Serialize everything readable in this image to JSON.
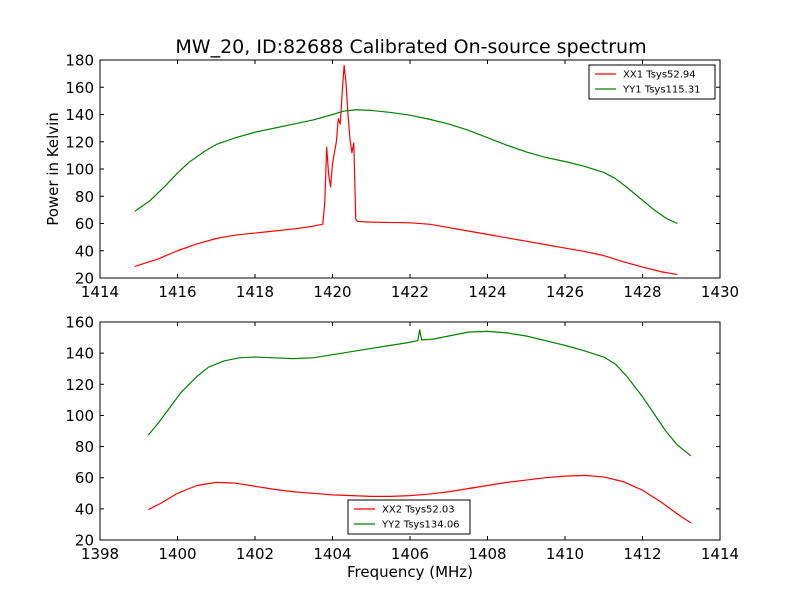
{
  "figure": {
    "title": "MW_20, ID:82688 Calibrated On-source spectrum",
    "ylabel": "Power in Kelvin",
    "xlabel": "Frequency (MHz)"
  },
  "chart_data": [
    {
      "type": "line",
      "xlim": [
        1414,
        1430
      ],
      "ylim": [
        20,
        180
      ],
      "xticks": [
        1414,
        1416,
        1418,
        1420,
        1422,
        1424,
        1426,
        1428,
        1430
      ],
      "yticks": [
        20,
        40,
        60,
        80,
        100,
        120,
        140,
        160,
        180
      ],
      "legend_loc": "upper right",
      "series": [
        {
          "name": "XX1 Tsys52.94",
          "color": "#ff0000",
          "points": [
            [
              1414.9,
              28.5
            ],
            [
              1415.5,
              34
            ],
            [
              1416.0,
              40
            ],
            [
              1416.5,
              45
            ],
            [
              1417.0,
              49
            ],
            [
              1417.5,
              51.5
            ],
            [
              1418.0,
              53
            ],
            [
              1418.5,
              54.5
            ],
            [
              1419.0,
              56
            ],
            [
              1419.5,
              58
            ],
            [
              1419.75,
              59.5
            ],
            [
              1419.8,
              75
            ],
            [
              1419.85,
              116
            ],
            [
              1419.9,
              96
            ],
            [
              1419.95,
              87
            ],
            [
              1420.0,
              104
            ],
            [
              1420.05,
              112
            ],
            [
              1420.1,
              120
            ],
            [
              1420.15,
              137
            ],
            [
              1420.2,
              133
            ],
            [
              1420.25,
              156
            ],
            [
              1420.3,
              176
            ],
            [
              1420.35,
              163
            ],
            [
              1420.4,
              140
            ],
            [
              1420.45,
              122
            ],
            [
              1420.5,
              112
            ],
            [
              1420.55,
              119
            ],
            [
              1420.6,
              63
            ],
            [
              1420.65,
              61.5
            ],
            [
              1421.0,
              61
            ],
            [
              1422.0,
              60.5
            ],
            [
              1422.5,
              59.5
            ],
            [
              1423.0,
              57
            ],
            [
              1423.5,
              54.5
            ],
            [
              1424.0,
              52
            ],
            [
              1424.5,
              49.5
            ],
            [
              1425.0,
              47
            ],
            [
              1425.5,
              44.5
            ],
            [
              1426.0,
              42
            ],
            [
              1426.5,
              39.5
            ],
            [
              1427.0,
              36.5
            ],
            [
              1427.5,
              32
            ],
            [
              1428.0,
              28
            ],
            [
              1428.5,
              24.5
            ],
            [
              1428.9,
              22.5
            ]
          ]
        },
        {
          "name": "YY1 Tsys115.31",
          "color": "#008000",
          "points": [
            [
              1414.9,
              69
            ],
            [
              1415.3,
              77
            ],
            [
              1415.7,
              88
            ],
            [
              1416.0,
              97
            ],
            [
              1416.3,
              105
            ],
            [
              1416.7,
              113
            ],
            [
              1417.0,
              118
            ],
            [
              1417.5,
              123
            ],
            [
              1418.0,
              127
            ],
            [
              1418.5,
              130
            ],
            [
              1419.0,
              133
            ],
            [
              1419.5,
              136
            ],
            [
              1420.0,
              140
            ],
            [
              1420.3,
              142.5
            ],
            [
              1420.6,
              143.5
            ],
            [
              1421.0,
              143
            ],
            [
              1421.5,
              141.5
            ],
            [
              1422.0,
              139.5
            ],
            [
              1422.5,
              136.5
            ],
            [
              1423.0,
              133
            ],
            [
              1423.5,
              128.5
            ],
            [
              1424.0,
              123
            ],
            [
              1424.5,
              117.5
            ],
            [
              1425.0,
              112.5
            ],
            [
              1425.5,
              108.5
            ],
            [
              1426.0,
              105.5
            ],
            [
              1426.5,
              102
            ],
            [
              1427.0,
              97.5
            ],
            [
              1427.3,
              93
            ],
            [
              1427.6,
              86.5
            ],
            [
              1428.0,
              77
            ],
            [
              1428.3,
              70
            ],
            [
              1428.6,
              64
            ],
            [
              1428.9,
              60
            ]
          ]
        }
      ]
    },
    {
      "type": "line",
      "xlim": [
        1398,
        1414
      ],
      "ylim": [
        20,
        160
      ],
      "xticks": [
        1398,
        1400,
        1402,
        1404,
        1406,
        1408,
        1410,
        1412,
        1414
      ],
      "yticks": [
        20,
        40,
        60,
        80,
        100,
        120,
        140,
        160
      ],
      "legend_loc": "lower center",
      "series": [
        {
          "name": "XX2 Tsys52.03",
          "color": "#ff0000",
          "points": [
            [
              1399.25,
              39.5
            ],
            [
              1399.6,
              44
            ],
            [
              1400.0,
              50
            ],
            [
              1400.5,
              55
            ],
            [
              1401.0,
              57
            ],
            [
              1401.5,
              56.5
            ],
            [
              1402.0,
              54.5
            ],
            [
              1402.5,
              52.5
            ],
            [
              1403.0,
              51
            ],
            [
              1403.5,
              50
            ],
            [
              1404.0,
              49
            ],
            [
              1404.5,
              48.5
            ],
            [
              1405.0,
              48
            ],
            [
              1405.5,
              48
            ],
            [
              1406.0,
              48.5
            ],
            [
              1406.5,
              49.5
            ],
            [
              1407.0,
              51
            ],
            [
              1407.5,
              53
            ],
            [
              1408.0,
              55
            ],
            [
              1408.5,
              57
            ],
            [
              1409.0,
              58.5
            ],
            [
              1409.5,
              60
            ],
            [
              1410.0,
              61
            ],
            [
              1410.5,
              61.5
            ],
            [
              1411.0,
              60.5
            ],
            [
              1411.5,
              57.5
            ],
            [
              1412.0,
              52
            ],
            [
              1412.5,
              44
            ],
            [
              1413.0,
              35
            ],
            [
              1413.25,
              31
            ]
          ]
        },
        {
          "name": "YY2 Tsys134.06",
          "color": "#008000",
          "points": [
            [
              1399.25,
              87.5
            ],
            [
              1399.5,
              95
            ],
            [
              1399.8,
              105
            ],
            [
              1400.1,
              115
            ],
            [
              1400.5,
              125
            ],
            [
              1400.8,
              131
            ],
            [
              1401.2,
              135
            ],
            [
              1401.6,
              137
            ],
            [
              1402.0,
              137.5
            ],
            [
              1402.5,
              137
            ],
            [
              1403.0,
              136.5
            ],
            [
              1403.5,
              137
            ],
            [
              1404.0,
              139
            ],
            [
              1404.5,
              141
            ],
            [
              1405.0,
              143
            ],
            [
              1405.5,
              145
            ],
            [
              1406.0,
              147
            ],
            [
              1406.2,
              148
            ],
            [
              1406.25,
              155
            ],
            [
              1406.3,
              148.5
            ],
            [
              1406.6,
              149
            ],
            [
              1407.0,
              151
            ],
            [
              1407.5,
              153.5
            ],
            [
              1408.0,
              154
            ],
            [
              1408.5,
              153
            ],
            [
              1409.0,
              151
            ],
            [
              1409.5,
              148
            ],
            [
              1410.0,
              145
            ],
            [
              1410.5,
              141.5
            ],
            [
              1411.0,
              137.5
            ],
            [
              1411.3,
              133
            ],
            [
              1411.6,
              125
            ],
            [
              1412.0,
              112
            ],
            [
              1412.3,
              101
            ],
            [
              1412.6,
              90
            ],
            [
              1412.9,
              81
            ],
            [
              1413.25,
              74
            ]
          ]
        }
      ]
    }
  ]
}
